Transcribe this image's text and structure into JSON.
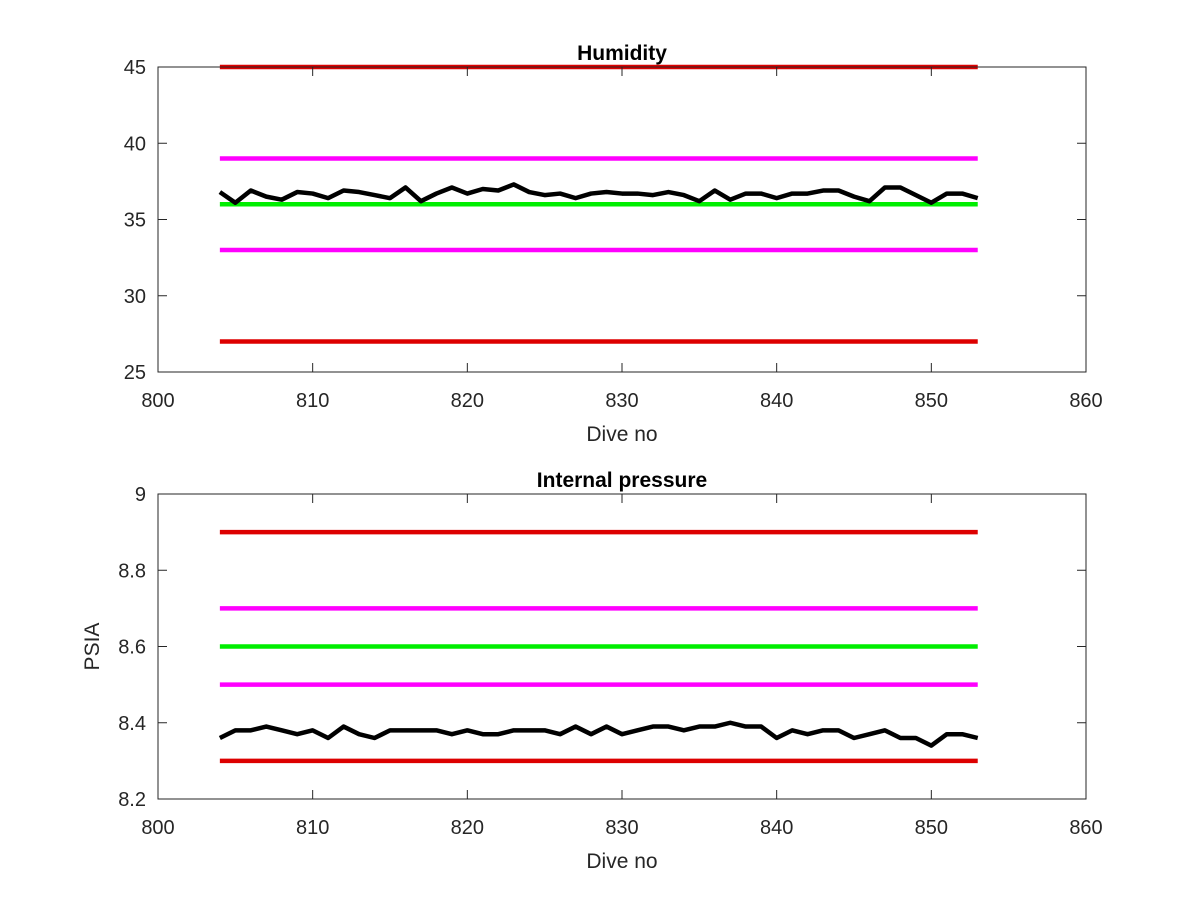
{
  "chart_data": [
    {
      "type": "line",
      "title": "Humidity",
      "xlabel": "Dive no",
      "ylabel": "",
      "xlim": [
        800,
        860
      ],
      "ylim": [
        25,
        45
      ],
      "xticks": [
        800,
        810,
        820,
        830,
        840,
        850,
        860
      ],
      "yticks": [
        25,
        30,
        35,
        40,
        45
      ],
      "xtick_labels": [
        "800",
        "810",
        "820",
        "830",
        "840",
        "850",
        "860"
      ],
      "ytick_labels": [
        "25",
        "30",
        "35",
        "40",
        "45"
      ],
      "grid": false,
      "limit_lines": [
        {
          "color": "#dd0000",
          "y": 45,
          "x": [
            804,
            853
          ]
        },
        {
          "color": "#ff00ff",
          "y": 39,
          "x": [
            804,
            853
          ]
        },
        {
          "color": "#00ee00",
          "y": 36,
          "x": [
            804,
            853
          ]
        },
        {
          "color": "#ff00ff",
          "y": 33,
          "x": [
            804,
            853
          ]
        },
        {
          "color": "#dd0000",
          "y": 27,
          "x": [
            804,
            853
          ]
        }
      ],
      "series": [
        {
          "color": "#000000",
          "x": [
            804,
            805,
            806,
            807,
            808,
            809,
            810,
            811,
            812,
            813,
            814,
            815,
            816,
            817,
            818,
            819,
            820,
            821,
            822,
            823,
            824,
            825,
            826,
            827,
            828,
            829,
            830,
            831,
            832,
            833,
            834,
            835,
            836,
            837,
            838,
            839,
            840,
            841,
            842,
            843,
            844,
            845,
            846,
            847,
            848,
            849,
            850,
            851,
            852,
            853
          ],
          "values": [
            36.8,
            36.1,
            36.9,
            36.5,
            36.3,
            36.8,
            36.7,
            36.4,
            36.9,
            36.8,
            36.6,
            36.4,
            37.1,
            36.2,
            36.7,
            37.1,
            36.7,
            37.0,
            36.9,
            37.3,
            36.8,
            36.6,
            36.7,
            36.4,
            36.7,
            36.8,
            36.7,
            36.7,
            36.6,
            36.8,
            36.6,
            36.2,
            36.9,
            36.3,
            36.7,
            36.7,
            36.4,
            36.7,
            36.7,
            36.9,
            36.9,
            36.5,
            36.2,
            37.1,
            37.1,
            36.6,
            36.1,
            36.7,
            36.7,
            36.4
          ]
        }
      ]
    },
    {
      "type": "line",
      "title": "Internal pressure",
      "xlabel": "Dive no",
      "ylabel": "PSIA",
      "xlim": [
        800,
        860
      ],
      "ylim": [
        8.2,
        9.0
      ],
      "xticks": [
        800,
        810,
        820,
        830,
        840,
        850,
        860
      ],
      "yticks": [
        8.2,
        8.4,
        8.6,
        8.8,
        9.0
      ],
      "xtick_labels": [
        "800",
        "810",
        "820",
        "830",
        "840",
        "850",
        "860"
      ],
      "ytick_labels": [
        "8.2",
        "8.4",
        "8.6",
        "8.8",
        "9"
      ],
      "grid": false,
      "limit_lines": [
        {
          "color": "#dd0000",
          "y": 8.9,
          "x": [
            804,
            853
          ]
        },
        {
          "color": "#ff00ff",
          "y": 8.7,
          "x": [
            804,
            853
          ]
        },
        {
          "color": "#00ee00",
          "y": 8.6,
          "x": [
            804,
            853
          ]
        },
        {
          "color": "#ff00ff",
          "y": 8.5,
          "x": [
            804,
            853
          ]
        },
        {
          "color": "#dd0000",
          "y": 8.3,
          "x": [
            804,
            853
          ]
        }
      ],
      "series": [
        {
          "color": "#000000",
          "x": [
            804,
            805,
            806,
            807,
            808,
            809,
            810,
            811,
            812,
            813,
            814,
            815,
            816,
            817,
            818,
            819,
            820,
            821,
            822,
            823,
            824,
            825,
            826,
            827,
            828,
            829,
            830,
            831,
            832,
            833,
            834,
            835,
            836,
            837,
            838,
            839,
            840,
            841,
            842,
            843,
            844,
            845,
            846,
            847,
            848,
            849,
            850,
            851,
            852,
            853
          ],
          "values": [
            8.36,
            8.38,
            8.38,
            8.39,
            8.38,
            8.37,
            8.38,
            8.36,
            8.39,
            8.37,
            8.36,
            8.38,
            8.38,
            8.38,
            8.38,
            8.37,
            8.38,
            8.37,
            8.37,
            8.38,
            8.38,
            8.38,
            8.37,
            8.39,
            8.37,
            8.39,
            8.37,
            8.38,
            8.39,
            8.39,
            8.38,
            8.39,
            8.39,
            8.4,
            8.39,
            8.39,
            8.36,
            8.38,
            8.37,
            8.38,
            8.38,
            8.36,
            8.37,
            8.38,
            8.36,
            8.36,
            8.34,
            8.37,
            8.37,
            8.36
          ]
        }
      ]
    }
  ]
}
